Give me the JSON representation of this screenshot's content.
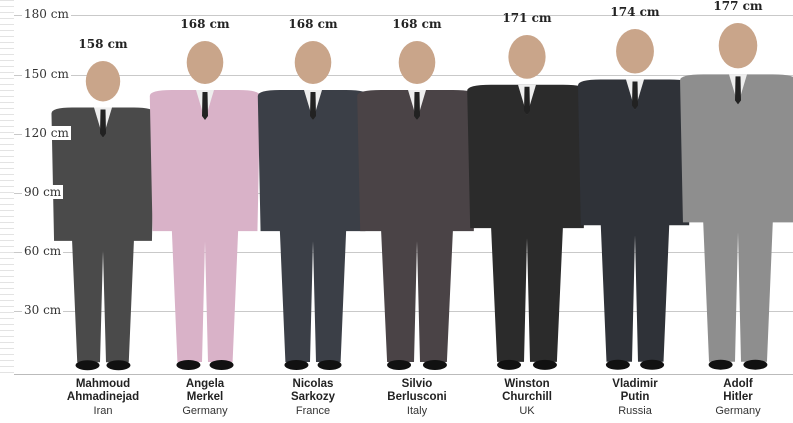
{
  "chart_data": {
    "type": "bar",
    "title": "",
    "xlabel": "",
    "ylabel": "",
    "ylim": [
      0,
      180
    ],
    "unit": "cm",
    "y_ticks": [
      {
        "value": 30,
        "label": "30 cm"
      },
      {
        "value": 60,
        "label": "60 cm"
      },
      {
        "value": 90,
        "label": "90 cm"
      },
      {
        "value": 120,
        "label": "120 cm"
      },
      {
        "value": 150,
        "label": "150 cm"
      },
      {
        "value": 180,
        "label": "180 cm"
      }
    ],
    "categories": [
      {
        "first": "Mahmoud",
        "last": "Ahmadinejad",
        "country": "Iran"
      },
      {
        "first": "Angela",
        "last": "Merkel",
        "country": "Germany"
      },
      {
        "first": "Nicolas",
        "last": "Sarkozy",
        "country": "France"
      },
      {
        "first": "Silvio",
        "last": "Berlusconi",
        "country": "Italy"
      },
      {
        "first": "Winston",
        "last": "Churchill",
        "country": "UK"
      },
      {
        "first": "Vladimir",
        "last": "Putin",
        "country": "Russia"
      },
      {
        "first": "Adolf",
        "last": "Hitler",
        "country": "Germany"
      }
    ],
    "values": [
      158,
      168,
      168,
      168,
      171,
      174,
      177
    ],
    "value_labels": [
      "158 cm",
      "168 cm",
      "168 cm",
      "168 cm",
      "171 cm",
      "174 cm",
      "177 cm"
    ],
    "colors": {
      "Ahmadinejad": "#4a4a4a",
      "Merkel": "#d9b2c8",
      "Sarkozy": "#3b3f47",
      "Berlusconi": "#4a4346",
      "Churchill": "#2b2b2b",
      "Putin": "#2f3238",
      "Hitler": "#8e8e8e"
    }
  }
}
